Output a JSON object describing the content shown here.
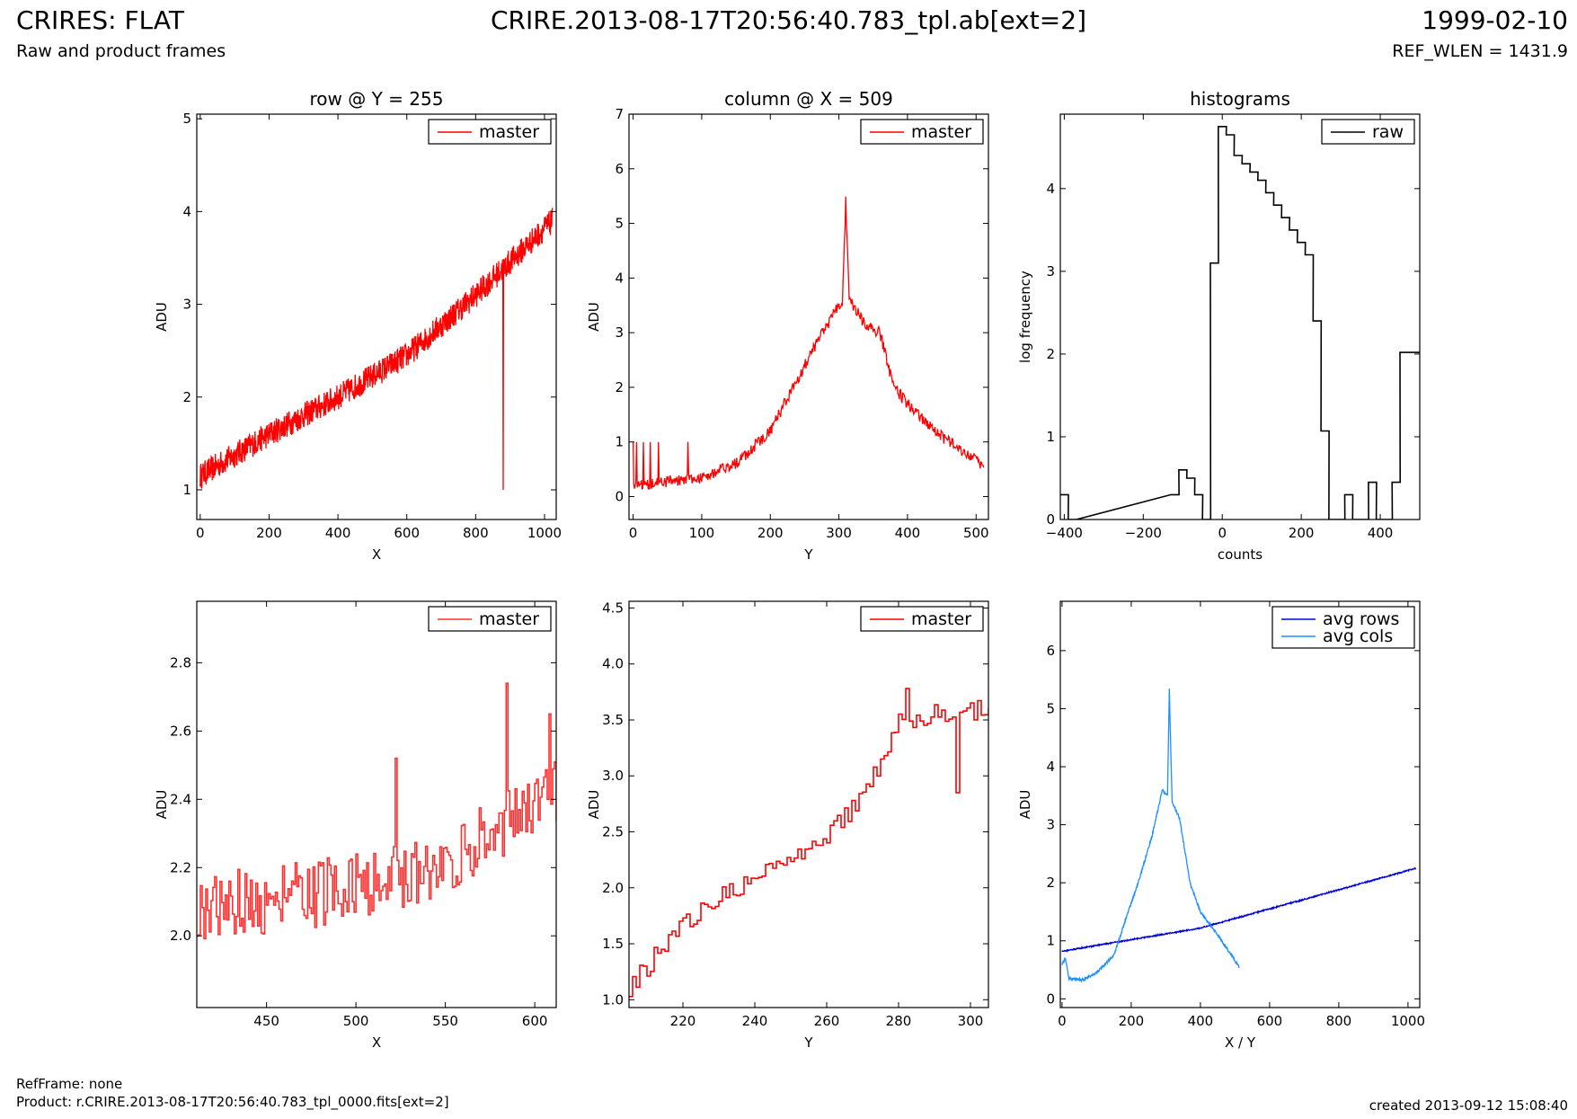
{
  "header": {
    "title": "CRIRES: FLAT",
    "file": "CRIRE.2013-08-17T20:56:40.783_tpl.ab[ext=2]",
    "date": "1999-02-10",
    "subtitle": "Raw and product frames",
    "ref_wlen": "REF_WLEN = 1431.9"
  },
  "footer": {
    "refframe": "RefFrame: none",
    "product": "Product: r.CRIRE.2013-08-17T20:56:40.783_tpl_0000.fits[ext=2]",
    "created": "created 2013-09-12 15:08:40"
  },
  "colors": {
    "master": "#ff0000",
    "master_zoom": "#ff3030",
    "raw": "#000000",
    "avg_rows": "#0000dd",
    "avg_cols": "#1e90ff"
  },
  "chart_data": [
    {
      "id": "row",
      "type": "line",
      "title": "row @ Y = 255",
      "xlabel": "X",
      "ylabel": "ADU",
      "xlim": [
        -10,
        1034
      ],
      "ylim": [
        0.68,
        5.05
      ],
      "xticks": [
        0,
        200,
        400,
        600,
        800,
        1000
      ],
      "yticks": [
        1,
        2,
        3,
        4,
        5
      ],
      "legend": "top-right",
      "series": [
        {
          "name": "master",
          "color": "#ff0000",
          "x_range": [
            0,
            1023
          ],
          "trend": [
            [
              0,
              1.15
            ],
            [
              200,
              1.6
            ],
            [
              400,
              2.0
            ],
            [
              600,
              2.45
            ],
            [
              800,
              3.1
            ],
            [
              1023,
              3.9
            ]
          ],
          "noise": 0.28,
          "dip": {
            "x": 880,
            "y": 1.0
          }
        }
      ]
    },
    {
      "id": "column",
      "type": "line",
      "title": "column @ X = 509",
      "xlabel": "Y",
      "ylabel": "ADU",
      "xlim": [
        -6,
        518
      ],
      "ylim": [
        -0.42,
        7.0
      ],
      "xticks": [
        0,
        100,
        200,
        300,
        400,
        500
      ],
      "yticks": [
        0,
        1,
        2,
        3,
        4,
        5,
        6,
        7
      ],
      "legend": "top-right",
      "series": [
        {
          "name": "master",
          "color": "#ff0000",
          "x_range": [
            0,
            511
          ],
          "trend": [
            [
              0,
              0.2
            ],
            [
              100,
              0.35
            ],
            [
              150,
              0.6
            ],
            [
              200,
              1.2
            ],
            [
              250,
              2.4
            ],
            [
              290,
              3.3
            ],
            [
              305,
              3.6
            ],
            [
              310,
              5.4
            ],
            [
              315,
              3.6
            ],
            [
              340,
              3.1
            ],
            [
              360,
              3.0
            ],
            [
              380,
              2.0
            ],
            [
              400,
              1.7
            ],
            [
              450,
              1.1
            ],
            [
              511,
              0.55
            ]
          ],
          "noise": 0.22,
          "spikes_to_1": [
            0,
            5,
            15,
            25,
            37,
            80
          ]
        }
      ]
    },
    {
      "id": "histograms",
      "type": "line",
      "title": "histograms",
      "xlabel": "counts",
      "ylabel": "log frequency",
      "xlim": [
        -410,
        500
      ],
      "ylim": [
        0,
        4.9
      ],
      "xticks": [
        -400,
        -200,
        0,
        200,
        400
      ],
      "yticks": [
        0,
        1,
        2,
        3,
        4
      ],
      "legend": "top-right",
      "series": [
        {
          "name": "raw",
          "color": "#000000",
          "step": true,
          "bin_width": 20.5,
          "x": [
            -410,
            -390,
            -130,
            -110,
            -90,
            -70,
            -50,
            -30,
            -10,
            10,
            30,
            50,
            70,
            90,
            110,
            130,
            150,
            170,
            190,
            210,
            230,
            250,
            270,
            290,
            310,
            330,
            350,
            370,
            390,
            410,
            430,
            450,
            470,
            490
          ],
          "y": [
            0.3,
            0,
            0.3,
            0.6,
            0.5,
            0.3,
            0,
            3.1,
            4.75,
            4.65,
            4.4,
            4.3,
            4.2,
            4.1,
            3.95,
            3.8,
            3.65,
            3.5,
            3.35,
            3.2,
            2.4,
            1.07,
            0,
            0,
            0.3,
            0,
            0,
            0.45,
            0,
            0,
            0.45,
            2.02,
            2.02,
            2.02
          ]
        }
      ]
    },
    {
      "id": "row_zoom",
      "type": "line",
      "title": "",
      "xlabel": "X",
      "ylabel": "ADU",
      "xlim": [
        411,
        612
      ],
      "ylim": [
        1.79,
        2.98
      ],
      "xticks": [
        450,
        500,
        550,
        600
      ],
      "yticks": [
        2.0,
        2.2,
        2.4,
        2.6,
        2.8
      ],
      "legend": "top-right",
      "series": [
        {
          "name": "master",
          "color": "#ff3030",
          "step": true,
          "x_range": [
            411,
            612
          ],
          "trend": [
            [
              411,
              2.08
            ],
            [
              500,
              2.14
            ],
            [
              550,
              2.22
            ],
            [
              612,
              2.42
            ]
          ],
          "noise": 0.2,
          "peaks": [
            [
              584,
              2.74
            ],
            [
              608,
              2.65
            ],
            [
              522,
              2.52
            ]
          ]
        }
      ]
    },
    {
      "id": "column_zoom",
      "type": "line",
      "title": "",
      "xlabel": "Y",
      "ylabel": "ADU",
      "xlim": [
        205,
        305
      ],
      "ylim": [
        0.93,
        4.56
      ],
      "xticks": [
        220,
        240,
        260,
        280,
        300
      ],
      "yticks": [
        1.0,
        1.5,
        2.0,
        2.5,
        3.0,
        3.5,
        4.0,
        4.5
      ],
      "legend": "top-right",
      "series": [
        {
          "name": "master",
          "color": "#ff0000",
          "step": true,
          "x_range": [
            205,
            305
          ],
          "trend": [
            [
              205,
              1.1
            ],
            [
              220,
              1.7
            ],
            [
              240,
              2.1
            ],
            [
              255,
              2.3
            ],
            [
              270,
              2.8
            ],
            [
              280,
              3.5
            ],
            [
              290,
              3.55
            ],
            [
              305,
              3.6
            ]
          ],
          "noise": 0.18,
          "peaks": [
            [
              282,
              3.78
            ],
            [
              296,
              2.85
            ]
          ]
        }
      ]
    },
    {
      "id": "averages",
      "type": "line",
      "title": "",
      "xlabel": "X / Y",
      "ylabel": "ADU",
      "xlim": [
        -5,
        1034
      ],
      "ylim": [
        -0.15,
        6.85
      ],
      "xticks": [
        0,
        200,
        400,
        600,
        800,
        1000
      ],
      "yticks": [
        0,
        1,
        2,
        3,
        4,
        5,
        6
      ],
      "legend": "top-right",
      "series": [
        {
          "name": "avg rows",
          "color": "#0000dd",
          "x_range": [
            0,
            1023
          ],
          "trend": [
            [
              0,
              0.82
            ],
            [
              200,
              1.02
            ],
            [
              400,
              1.22
            ],
            [
              600,
              1.55
            ],
            [
              800,
              1.88
            ],
            [
              1023,
              2.25
            ]
          ],
          "noise": 0.02
        },
        {
          "name": "avg cols",
          "color": "#1e90ff",
          "x_range": [
            0,
            511
          ],
          "trend": [
            [
              0,
              0.6
            ],
            [
              10,
              0.7
            ],
            [
              20,
              0.35
            ],
            [
              60,
              0.33
            ],
            [
              100,
              0.45
            ],
            [
              150,
              0.75
            ],
            [
              180,
              1.3
            ],
            [
              220,
              2.0
            ],
            [
              260,
              2.8
            ],
            [
              290,
              3.6
            ],
            [
              305,
              3.5
            ],
            [
              310,
              5.35
            ],
            [
              318,
              3.4
            ],
            [
              340,
              3.1
            ],
            [
              370,
              2.0
            ],
            [
              400,
              1.5
            ],
            [
              450,
              1.1
            ],
            [
              490,
              0.75
            ],
            [
              511,
              0.55
            ]
          ],
          "noise": 0.05
        }
      ]
    }
  ]
}
